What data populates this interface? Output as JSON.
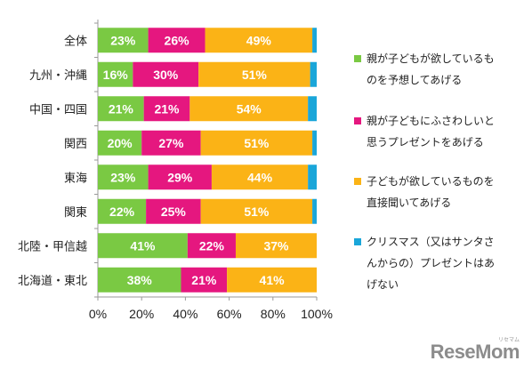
{
  "chart_data": {
    "type": "bar",
    "orientation": "horizontal",
    "stacked": true,
    "categories": [
      "全体",
      "九州・沖縄",
      "中国・四国",
      "関西",
      "東海",
      "関東",
      "北陸・甲信越",
      "北海道・東北"
    ],
    "series": [
      {
        "name": "親が子どもが欲しているものを予想してあげる",
        "legend_lines": [
          "親が子どもが欲しているも",
          "のを予想してあげる"
        ],
        "color": "#7ac943",
        "values": [
          23,
          16,
          21,
          20,
          23,
          22,
          41,
          38
        ]
      },
      {
        "name": "親が子どもにふさわしいと思うプレゼントをあげる",
        "legend_lines": [
          "親が子どもにふさわしいと",
          "思うプレゼントをあげる"
        ],
        "color": "#e5177f",
        "values": [
          26,
          30,
          21,
          27,
          29,
          25,
          22,
          21
        ]
      },
      {
        "name": "子どもが欲しているものを直接聞いてあげる",
        "legend_lines": [
          "子どもが欲しているものを",
          "直接聞いてあげる"
        ],
        "color": "#fbb316",
        "values": [
          49,
          51,
          54,
          51,
          44,
          51,
          37,
          41
        ]
      },
      {
        "name": "クリスマス（又はサンタさんからの）プレゼントはあげない",
        "legend_lines": [
          "クリスマス（又はサンタさ",
          "んからの）プレゼントはあ",
          "げない"
        ],
        "color": "#1aa6d9",
        "values": [
          2,
          3,
          4,
          2,
          4,
          2,
          0,
          0
        ]
      }
    ],
    "data_labels": [
      [
        "23%",
        "26%",
        "49%",
        ""
      ],
      [
        "16%",
        "30%",
        "51%",
        ""
      ],
      [
        "21%",
        "21%",
        "54%",
        ""
      ],
      [
        "20%",
        "27%",
        "51%",
        ""
      ],
      [
        "23%",
        "29%",
        "44%",
        ""
      ],
      [
        "22%",
        "25%",
        "51%",
        ""
      ],
      [
        "41%",
        "22%",
        "37%",
        ""
      ],
      [
        "38%",
        "21%",
        "41%",
        ""
      ]
    ],
    "xticks": [
      "0%",
      "20%",
      "40%",
      "60%",
      "80%",
      "100%"
    ],
    "xlim": [
      0,
      100
    ],
    "title": "",
    "xlabel": "",
    "ylabel": "",
    "grid": false,
    "legend_position": "right"
  },
  "watermark": {
    "text": "ReseMom",
    "small": "リセマム"
  }
}
